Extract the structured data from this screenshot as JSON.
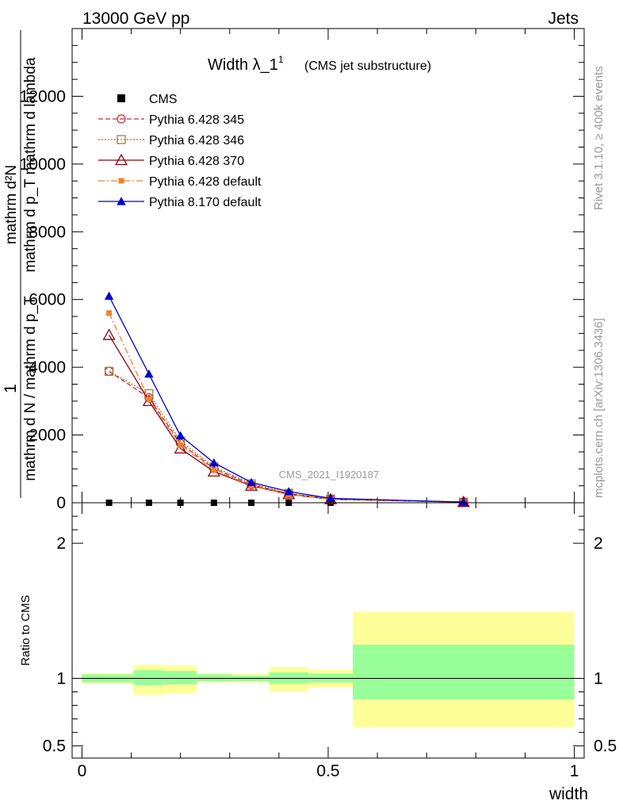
{
  "header": {
    "left": "13000 GeV pp",
    "right": "Jets"
  },
  "side_labels": {
    "rivet": "Rivet 3.1.10, ≥ 400k events",
    "mcplots": "mcplots.cern.ch [arXiv:1306.3436]"
  },
  "colors": {
    "cms": "#000000",
    "p345": "#c03030",
    "p346": "#a07030",
    "p370": "#900010",
    "pdef": "#f08030",
    "p8": "#0000d0",
    "band_inner": "#99ff99",
    "band_outer": "#ffff99"
  },
  "chart_data": [
    {
      "type": "line",
      "title": "Width λ_1",
      "title_superscript": "1",
      "subtitle": "(CMS jet substructure)",
      "watermark": "CMS_2021_I1920187",
      "ylabel": {
        "numerator": "mathrm d²N",
        "denominator_top": "mathrm d p_T mathrm d lambda",
        "one": "1",
        "denominator": "mathrm d N / mathrm d p_T"
      },
      "xlim": [
        -0.02,
        1.02
      ],
      "ylim": [
        0,
        14000
      ],
      "yticks": [
        0,
        2000,
        4000,
        6000,
        8000,
        10000,
        12000
      ],
      "ytick_labels": [
        "0",
        "2000",
        "4000",
        "6000",
        "8000",
        "10000",
        "12000"
      ],
      "legend_position": "top-left",
      "series": [
        {
          "name": "CMS",
          "marker": "square",
          "x": [
            0.055,
            0.136,
            0.2,
            0.268,
            0.344,
            0.42,
            0.505,
            0.775
          ],
          "y": [
            0,
            0,
            0,
            0,
            0,
            0,
            0,
            0
          ]
        },
        {
          "name": "Pythia 6.428 345",
          "marker": "circle-open",
          "dash": "dashed",
          "x": [
            0.055,
            0.136,
            0.2,
            0.268,
            0.344,
            0.42,
            0.505,
            0.775
          ],
          "y": [
            3880,
            3100,
            1750,
            1010,
            530,
            270,
            110,
            20
          ]
        },
        {
          "name": "Pythia 6.428 346",
          "marker": "square-open",
          "dash": "dotted",
          "x": [
            0.055,
            0.136,
            0.2,
            0.268,
            0.344,
            0.42,
            0.505,
            0.775
          ],
          "y": [
            3880,
            3220,
            1820,
            1060,
            560,
            280,
            110,
            20
          ]
        },
        {
          "name": "Pythia 6.428 370",
          "marker": "triangle-open",
          "dash": "solid",
          "x": [
            0.055,
            0.136,
            0.2,
            0.268,
            0.344,
            0.42,
            0.505,
            0.775
          ],
          "y": [
            4950,
            3000,
            1600,
            920,
            500,
            250,
            100,
            20
          ]
        },
        {
          "name": "Pythia 6.428 default",
          "marker": "square-filled",
          "dash": "dashdot",
          "x": [
            0.055,
            0.136,
            0.2,
            0.268,
            0.344,
            0.42,
            0.505,
            0.775
          ],
          "y": [
            5600,
            3050,
            1700,
            960,
            510,
            255,
            100,
            20
          ]
        },
        {
          "name": "Pythia 8.170 default",
          "marker": "triangle-filled",
          "dash": "solid",
          "x": [
            0.055,
            0.136,
            0.2,
            0.268,
            0.344,
            0.42,
            0.505,
            0.775
          ],
          "y": [
            6100,
            3800,
            1980,
            1180,
            600,
            330,
            130,
            20
          ]
        }
      ]
    },
    {
      "type": "area",
      "ylabel": "Ratio to CMS",
      "xlabel": "width",
      "xlim": [
        -0.02,
        1.02
      ],
      "ylim": [
        0.41,
        2.3
      ],
      "yticks": [
        0.5,
        1,
        2
      ],
      "ytick_labels": [
        "0.5",
        "1",
        "2"
      ],
      "xticks": [
        0,
        0.5,
        1
      ],
      "xtick_labels": [
        "0",
        "0.5",
        "1"
      ],
      "reference": 1,
      "bins": [
        {
          "x0": 0.0,
          "x1": 0.105,
          "inner": [
            0.97,
            1.03
          ],
          "outer": [
            0.96,
            1.04
          ]
        },
        {
          "x0": 0.105,
          "x1": 0.168,
          "inner": [
            0.95,
            1.06
          ],
          "outer": [
            0.88,
            1.1
          ]
        },
        {
          "x0": 0.168,
          "x1": 0.233,
          "inner": [
            0.955,
            1.055
          ],
          "outer": [
            0.89,
            1.095
          ]
        },
        {
          "x0": 0.233,
          "x1": 0.305,
          "inner": [
            0.98,
            1.03
          ],
          "outer": [
            0.97,
            1.04
          ]
        },
        {
          "x0": 0.305,
          "x1": 0.38,
          "inner": [
            0.98,
            1.02
          ],
          "outer": [
            0.97,
            1.035
          ]
        },
        {
          "x0": 0.38,
          "x1": 0.46,
          "inner": [
            0.96,
            1.045
          ],
          "outer": [
            0.905,
            1.085
          ]
        },
        {
          "x0": 0.46,
          "x1": 0.55,
          "inner": [
            0.97,
            1.035
          ],
          "outer": [
            0.935,
            1.065
          ]
        },
        {
          "x0": 0.55,
          "x1": 1.0,
          "inner": [
            0.845,
            1.25
          ],
          "outer": [
            0.64,
            1.49
          ]
        }
      ]
    }
  ]
}
